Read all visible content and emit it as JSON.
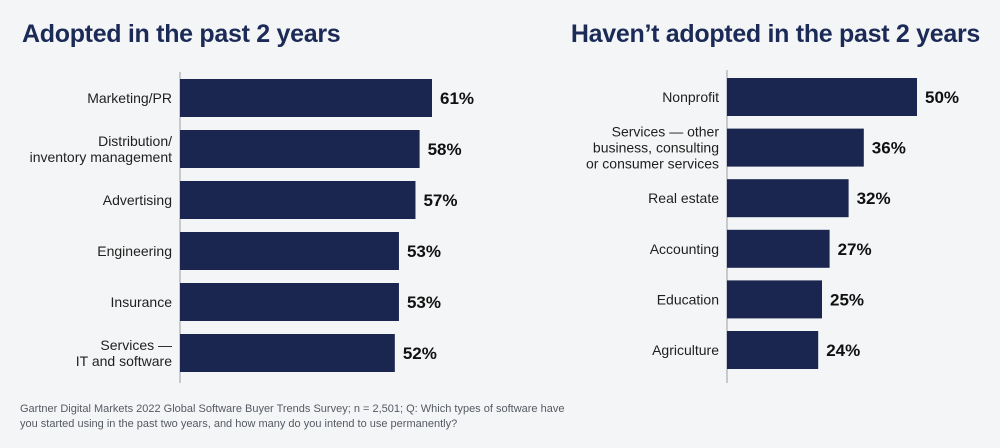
{
  "chart_data": [
    {
      "type": "bar",
      "orientation": "horizontal",
      "title": "Adopted in the past 2 years",
      "categories": [
        [
          "Marketing/PR"
        ],
        [
          "Distribution/",
          "inventory management"
        ],
        [
          "Advertising"
        ],
        [
          "Engineering"
        ],
        [
          "Insurance"
        ],
        [
          "Services —",
          "IT and software"
        ]
      ],
      "values": [
        61,
        58,
        57,
        53,
        53,
        52
      ],
      "value_labels": [
        "61%",
        "58%",
        "57%",
        "53%",
        "53%",
        "52%"
      ],
      "xlabel": "",
      "ylabel": "",
      "xlim": [
        0,
        61
      ]
    },
    {
      "type": "bar",
      "orientation": "horizontal",
      "title": "Haven’t adopted in the past 2 years",
      "categories": [
        [
          "Nonprofit"
        ],
        [
          "Services — other",
          "business, consulting",
          "or consumer services"
        ],
        [
          "Real estate"
        ],
        [
          "Accounting"
        ],
        [
          "Education"
        ],
        [
          "Agriculture"
        ]
      ],
      "values": [
        50,
        36,
        32,
        27,
        25,
        24
      ],
      "value_labels": [
        "50%",
        "36%",
        "32%",
        "27%",
        "25%",
        "24%"
      ],
      "xlabel": "",
      "ylabel": "",
      "xlim": [
        0,
        50
      ]
    }
  ],
  "footnote": "Gartner Digital Markets 2022 Global Software Buyer Trends Survey; n = 2,501; Q: Which types of software have you started using in the past two years, and how many do you intend to use permanently?",
  "colors": {
    "bar": "#1b2650",
    "title": "#1b2a57",
    "axis": "#a9adb3"
  }
}
